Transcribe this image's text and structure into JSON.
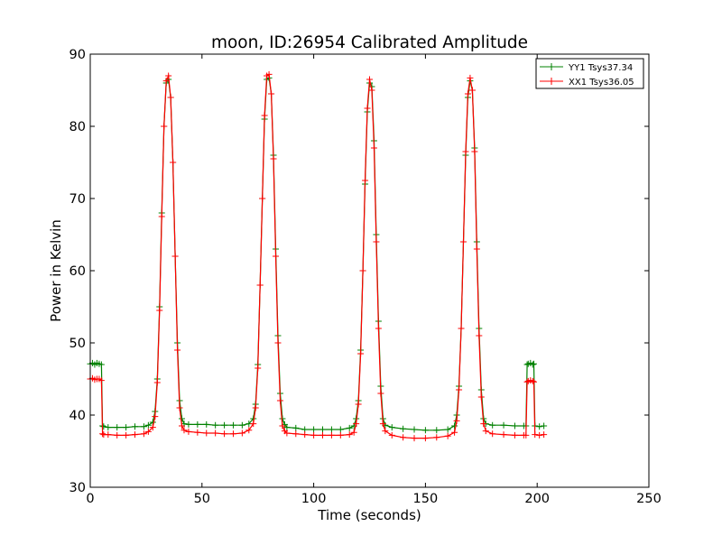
{
  "chart_data": {
    "type": "line",
    "title": "moon, ID:26954 Calibrated Amplitude",
    "xlabel": "Time (seconds)",
    "ylabel": "Power in Kelvin",
    "xlim": [
      0,
      250
    ],
    "ylim": [
      30,
      90
    ],
    "xticks": [
      "0",
      "50",
      "100",
      "150",
      "200",
      "250"
    ],
    "yticks": [
      "30",
      "40",
      "50",
      "60",
      "70",
      "80",
      "90"
    ],
    "grid": false,
    "legend_position": "top-right",
    "marker": "plus",
    "series": [
      {
        "name": "YY1 Tsys37.34",
        "color": "#008000",
        "x": [
          0,
          1,
          2,
          3,
          4,
          5,
          5.5,
          6,
          8,
          12,
          16,
          20,
          24,
          26,
          28,
          29,
          30,
          31,
          32,
          33,
          34,
          35,
          36,
          37,
          38,
          39,
          40,
          41,
          42,
          44,
          48,
          52,
          56,
          60,
          64,
          68,
          71,
          73,
          74,
          75,
          76,
          77,
          78,
          79,
          80,
          81,
          82,
          83,
          84,
          85,
          86,
          87,
          88,
          92,
          96,
          100,
          104,
          108,
          112,
          116,
          118,
          119,
          120,
          121,
          122,
          123,
          124,
          125,
          126,
          127,
          128,
          129,
          130,
          131,
          132,
          135,
          140,
          145,
          150,
          155,
          160,
          163,
          164,
          165,
          166,
          167,
          168,
          169,
          170,
          171,
          172,
          173,
          174,
          175,
          176,
          177,
          180,
          185,
          190,
          194,
          195,
          195.5,
          196,
          197,
          198,
          198.5,
          199,
          201,
          203
        ],
        "values": [
          47.1,
          47.2,
          47.0,
          47.2,
          47.1,
          47.0,
          38.5,
          38.4,
          38.3,
          38.3,
          38.3,
          38.4,
          38.4,
          38.6,
          39.0,
          40.5,
          45.0,
          55.0,
          68.0,
          80.0,
          86.0,
          86.5,
          84.0,
          75.0,
          62.0,
          50.0,
          42.0,
          39.5,
          38.8,
          38.7,
          38.7,
          38.7,
          38.6,
          38.6,
          38.6,
          38.6,
          38.8,
          39.5,
          41.5,
          47.0,
          58.0,
          70.0,
          81.0,
          86.5,
          86.7,
          84.5,
          76.0,
          63.0,
          51.0,
          43.0,
          39.5,
          38.7,
          38.3,
          38.2,
          38.0,
          38.0,
          38.0,
          38.0,
          38.0,
          38.2,
          38.5,
          39.5,
          42.0,
          49.0,
          60.0,
          72.0,
          82.0,
          86.0,
          85.5,
          78.0,
          65.0,
          53.0,
          44.0,
          39.5,
          38.6,
          38.3,
          38.1,
          38.0,
          37.9,
          37.9,
          38.0,
          38.5,
          40.0,
          44.0,
          52.0,
          64.0,
          76.0,
          84.0,
          86.3,
          85.0,
          77.0,
          64.0,
          52.0,
          43.5,
          39.5,
          38.8,
          38.6,
          38.6,
          38.5,
          38.5,
          38.5,
          47.0,
          47.1,
          47.2,
          47.0,
          47.1,
          38.5,
          38.4,
          38.5
        ]
      },
      {
        "name": "XX1 Tsys36.05",
        "color": "#ff0000",
        "x": [
          0,
          1,
          2,
          3,
          4,
          5,
          5.5,
          6,
          8,
          12,
          16,
          20,
          24,
          26,
          28,
          29,
          30,
          31,
          32,
          33,
          34,
          35,
          36,
          37,
          38,
          39,
          40,
          41,
          42,
          44,
          48,
          52,
          56,
          60,
          64,
          68,
          71,
          73,
          74,
          75,
          76,
          77,
          78,
          79,
          80,
          81,
          82,
          83,
          84,
          85,
          86,
          87,
          88,
          92,
          96,
          100,
          104,
          108,
          112,
          116,
          118,
          119,
          120,
          121,
          122,
          123,
          124,
          125,
          126,
          127,
          128,
          129,
          130,
          131,
          132,
          135,
          140,
          145,
          150,
          155,
          160,
          163,
          164,
          165,
          166,
          167,
          168,
          169,
          170,
          171,
          172,
          173,
          174,
          175,
          176,
          177,
          180,
          185,
          190,
          194,
          195,
          195.5,
          196,
          197,
          198,
          198.5,
          199,
          201,
          203
        ],
        "values": [
          45.0,
          45.1,
          44.9,
          45.0,
          45.0,
          44.8,
          37.4,
          37.3,
          37.3,
          37.2,
          37.2,
          37.3,
          37.4,
          37.7,
          38.3,
          39.8,
          44.5,
          54.5,
          67.5,
          80.0,
          86.3,
          87.0,
          84.0,
          75.0,
          62.0,
          49.0,
          41.0,
          38.5,
          37.9,
          37.7,
          37.6,
          37.5,
          37.5,
          37.4,
          37.4,
          37.5,
          37.9,
          38.8,
          41.0,
          46.5,
          58.0,
          70.0,
          81.5,
          87.0,
          87.2,
          84.5,
          75.5,
          62.0,
          50.0,
          42.0,
          38.5,
          37.8,
          37.5,
          37.4,
          37.3,
          37.2,
          37.2,
          37.2,
          37.2,
          37.3,
          37.6,
          38.8,
          41.5,
          48.5,
          60.0,
          72.5,
          82.5,
          86.5,
          85.0,
          77.0,
          64.0,
          52.0,
          43.0,
          38.8,
          37.8,
          37.2,
          36.9,
          36.8,
          36.8,
          36.9,
          37.1,
          37.6,
          39.2,
          43.5,
          52.0,
          64.0,
          76.5,
          84.5,
          86.7,
          85.0,
          76.5,
          63.0,
          51.0,
          42.5,
          38.8,
          37.8,
          37.4,
          37.3,
          37.2,
          37.2,
          37.2,
          44.6,
          44.7,
          44.8,
          44.7,
          44.6,
          37.3,
          37.2,
          37.3
        ]
      }
    ]
  }
}
